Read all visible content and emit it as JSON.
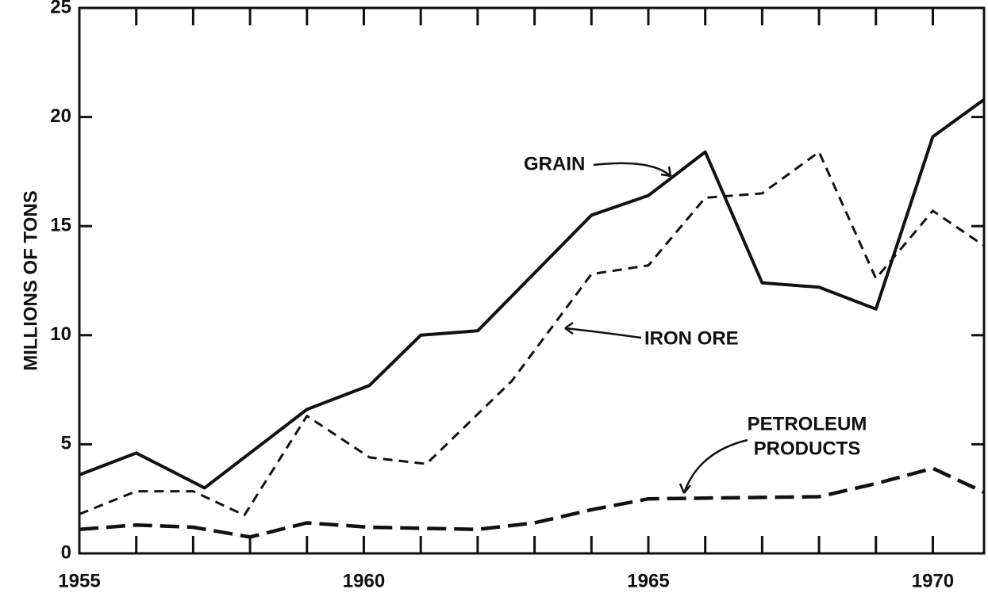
{
  "chart_data": {
    "type": "line",
    "y_label": "MILLIONS OF TONS",
    "xlim": [
      1955,
      1970.9
    ],
    "ylim": [
      0,
      25
    ],
    "xticks": [
      1955,
      1960,
      1965,
      1970
    ],
    "xminorticks": [
      1956,
      1957,
      1958,
      1959,
      1961,
      1962,
      1963,
      1964,
      1966,
      1967,
      1968,
      1969
    ],
    "yticks": [
      0,
      5,
      10,
      15,
      20,
      25
    ],
    "grid": false,
    "series": [
      {
        "name": "GRAIN",
        "color": "#111111",
        "dash": "solid",
        "x": [
          1955,
          1956,
          1957.2,
          1959,
          1960.1,
          1961,
          1962,
          1964,
          1965,
          1966,
          1967,
          1968,
          1969,
          1970,
          1970.9
        ],
        "values": [
          3.6,
          4.6,
          3.0,
          6.6,
          7.7,
          10.0,
          10.2,
          15.5,
          16.4,
          18.4,
          12.4,
          12.2,
          11.2,
          19.1,
          20.8
        ]
      },
      {
        "name": "IRON ORE",
        "color": "#111111",
        "dash": "short",
        "x": [
          1955,
          1956,
          1957,
          1957.9,
          1959,
          1960.1,
          1961.1,
          1962.6,
          1964,
          1965,
          1966,
          1967,
          1968,
          1969,
          1970,
          1970.9
        ],
        "values": [
          1.8,
          2.85,
          2.85,
          1.75,
          6.3,
          4.4,
          4.1,
          7.9,
          12.8,
          13.2,
          16.3,
          16.5,
          18.4,
          12.6,
          15.7,
          14.1
        ]
      },
      {
        "name": [
          "PETROLEUM",
          "PRODUCTS"
        ],
        "color": "#111111",
        "dash": "long",
        "x": [
          1955,
          1956,
          1957,
          1958,
          1959,
          1960.1,
          1962,
          1963,
          1964,
          1965,
          1968,
          1969,
          1970,
          1970.9
        ],
        "values": [
          1.1,
          1.3,
          1.2,
          0.75,
          1.4,
          1.2,
          1.1,
          1.4,
          2.0,
          2.5,
          2.6,
          3.2,
          3.9,
          2.8
        ]
      }
    ]
  }
}
